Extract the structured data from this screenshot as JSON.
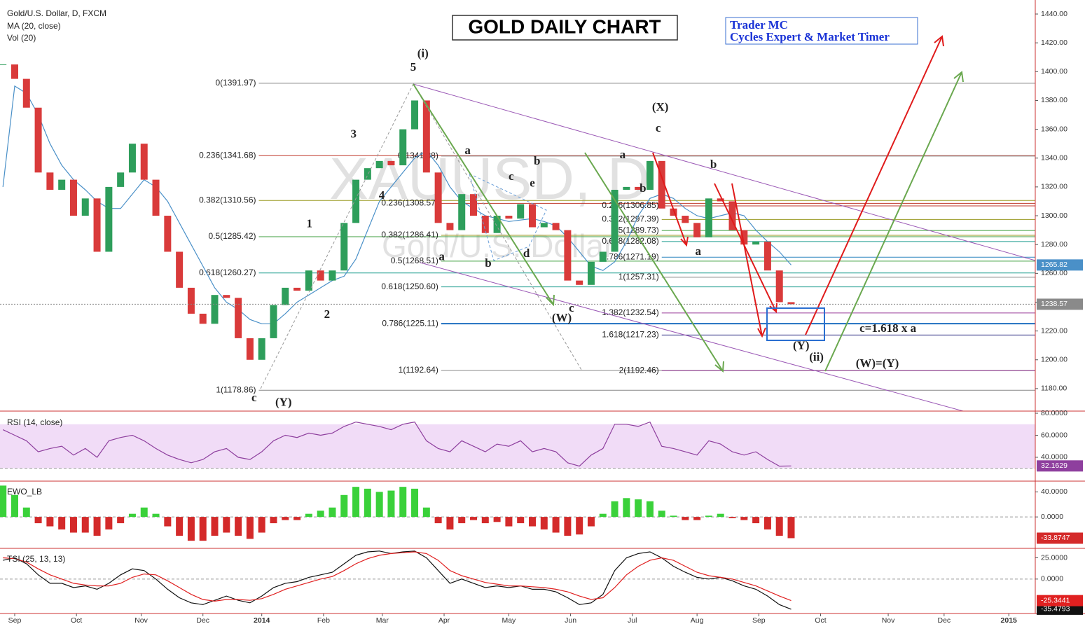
{
  "chart_data": [
    {
      "type": "candlestick",
      "title": "GOLD DAILY CHART",
      "subtitle": [
        "Trader MC",
        "Cycles Expert & Market Timer"
      ],
      "symbol": "Gold/U.S. Dollar, D, FXCM",
      "indicators": [
        "Vol (20)"
      ],
      "watermark": [
        "XAUUSD, D",
        "Gold/U.S. Dollar"
      ],
      "up_color": "#2e9e5b",
      "down_color": "#d93a3a",
      "x": [
        1,
        5,
        9,
        13,
        17,
        21,
        25,
        29,
        33,
        37,
        41,
        45,
        49,
        53,
        57,
        61,
        65,
        69,
        73,
        77,
        81,
        85,
        89,
        93,
        97,
        101,
        105,
        109,
        113,
        117,
        121,
        125,
        129,
        133,
        137,
        141,
        145,
        149,
        153,
        157,
        161,
        165,
        169,
        173,
        177,
        181,
        185,
        189,
        193,
        197,
        201,
        205,
        209,
        213,
        217,
        221,
        225,
        229,
        233,
        237,
        241,
        245,
        249,
        253,
        257,
        261,
        265,
        269
      ],
      "close": [
        1405,
        1395,
        1375,
        1330,
        1318,
        1325,
        1300,
        1312,
        1275,
        1320,
        1330,
        1350,
        1325,
        1300,
        1275,
        1250,
        1232,
        1225,
        1245,
        1243,
        1215,
        1200,
        1215,
        1238,
        1250,
        1248,
        1262,
        1255,
        1262,
        1295,
        1325,
        1333,
        1338,
        1335,
        1360,
        1380,
        1330,
        1295,
        1290,
        1315,
        1300,
        1288,
        1300,
        1298,
        1308,
        1292,
        1295,
        1290,
        1255,
        1252,
        1268,
        1275,
        1318,
        1320,
        1318,
        1338,
        1305,
        1300,
        1295,
        1285,
        1312,
        1310,
        1290,
        1280,
        1282,
        1262,
        1240,
        1238.57
      ],
      "ma": {
        "name": "MA (20, close)",
        "color": "#4a90c8",
        "values": [
          1320,
          1390,
          1385,
          1370,
          1350,
          1335,
          1325,
          1318,
          1310,
          1305,
          1305,
          1315,
          1325,
          1320,
          1310,
          1295,
          1280,
          1265,
          1250,
          1240,
          1235,
          1228,
          1225,
          1225,
          1232,
          1240,
          1245,
          1250,
          1255,
          1258,
          1270,
          1290,
          1310,
          1320,
          1330,
          1340,
          1345,
          1335,
          1320,
          1310,
          1305,
          1300,
          1298,
          1296,
          1297,
          1298,
          1296,
          1293,
          1285,
          1275,
          1265,
          1262,
          1268,
          1282,
          1300,
          1312,
          1315,
          1312,
          1305,
          1300,
          1298,
          1300,
          1302,
          1300,
          1290,
          1282,
          1275,
          1265.82
        ]
      },
      "xlim": [
        0,
        352
      ],
      "xticks": [
        {
          "value": 5,
          "label": "Sep"
        },
        {
          "value": 26,
          "label": "Oct"
        },
        {
          "value": 48,
          "label": "Nov"
        },
        {
          "value": 69,
          "label": "Dec"
        },
        {
          "value": 89,
          "label": "2014"
        },
        {
          "value": 110,
          "label": "Feb"
        },
        {
          "value": 130,
          "label": "Mar"
        },
        {
          "value": 151,
          "label": "Apr"
        },
        {
          "value": 173,
          "label": "May"
        },
        {
          "value": 194,
          "label": "Jun"
        },
        {
          "value": 215,
          "label": "Jul"
        },
        {
          "value": 237,
          "label": "Aug"
        },
        {
          "value": 258,
          "label": "Sep"
        },
        {
          "value": 279,
          "label": "Oct"
        },
        {
          "value": 302,
          "label": "Nov"
        },
        {
          "value": 321,
          "label": "Dec"
        },
        {
          "value": 343,
          "label": "2015"
        }
      ],
      "ylim": [
        1164.4,
        1447.3
      ],
      "yticks": [
        {
          "value": 1180,
          "label": "1180.00"
        },
        {
          "value": 1200,
          "label": "1200.00"
        },
        {
          "value": 1220,
          "label": "1220.00"
        },
        {
          "value": 1240,
          "label": "1240.00"
        },
        {
          "value": 1260,
          "label": "1260.00"
        },
        {
          "value": 1280,
          "label": "1280.00"
        },
        {
          "value": 1300,
          "label": "1300.00"
        },
        {
          "value": 1320,
          "label": "1320.00"
        },
        {
          "value": 1340,
          "label": "1340.00"
        },
        {
          "value": 1360,
          "label": "1360.00"
        },
        {
          "value": 1380,
          "label": "1380.00"
        },
        {
          "value": 1400,
          "label": "1400.00"
        },
        {
          "value": 1420,
          "label": "1420.00"
        },
        {
          "value": 1440,
          "label": "1440.00"
        }
      ],
      "fib_levels": [
        {
          "label": "0(1391.97)",
          "value": 1391.97,
          "color": "#888888",
          "from": 88
        },
        {
          "label": "0.236(1341.68)",
          "value": 1341.68,
          "color": "#c0392b",
          "from": 88
        },
        {
          "label": "0.382(1310.56)",
          "value": 1310.56,
          "color": "#9a9a22",
          "from": 88
        },
        {
          "label": "0.5(1285.42)",
          "value": 1285.42,
          "color": "#3f9f3f",
          "from": 88
        },
        {
          "label": "0.618(1260.27)",
          "value": 1260.27,
          "color": "#1f9d8f",
          "from": 88
        },
        {
          "label": "1(1178.86)",
          "value": 1178.86,
          "color": "#888888",
          "from": 88
        },
        {
          "label": "0(1341.38)",
          "value": 1341.38,
          "color": "#888888",
          "from": 150
        },
        {
          "label": "0.236(1308.57)",
          "value": 1308.57,
          "color": "#c0392b",
          "from": 150
        },
        {
          "label": "0.382(1286.41)",
          "value": 1286.41,
          "color": "#9a9a22",
          "from": 150
        },
        {
          "label": "0.5(1268.51)",
          "value": 1268.51,
          "color": "#3f9f3f",
          "from": 150
        },
        {
          "label": "0.618(1250.60)",
          "value": 1250.6,
          "color": "#1f9d8f",
          "from": 150
        },
        {
          "label": "0.786(1225.11)",
          "value": 1225.11,
          "color": "#1e6fc0",
          "from": 150
        },
        {
          "label": "1(1192.64)",
          "value": 1192.64,
          "color": "#888888",
          "from": 150
        },
        {
          "label": "0.236(1306.85)",
          "value": 1306.85,
          "color": "#c0392b",
          "from": 225
        },
        {
          "label": "0.382(1297.39)",
          "value": 1297.39,
          "color": "#9a9a22",
          "from": 225
        },
        {
          "label": "0.5(1289.73)",
          "value": 1289.73,
          "color": "#3f9f3f",
          "from": 225
        },
        {
          "label": "0.618(1282.08)",
          "value": 1282.08,
          "color": "#1f9d8f",
          "from": 225
        },
        {
          "label": "0.786(1271.19)",
          "value": 1271.19,
          "color": "#2f86c0",
          "from": 225
        },
        {
          "label": "1(1257.31)",
          "value": 1257.31,
          "color": "#888888",
          "from": 225
        },
        {
          "label": "1.382(1232.54)",
          "value": 1232.54,
          "color": "#9b3f9b",
          "from": 225
        },
        {
          "label": "1.618(1217.23)",
          "value": 1217.23,
          "color": "#2a2a80",
          "from": 225
        },
        {
          "label": "2(1192.46)",
          "value": 1192.46,
          "color": "#9b3f9b",
          "from": 225
        }
      ],
      "annotations": [
        {
          "text": "(i)",
          "x": 143.8,
          "y": 1412,
          "color": "#000000"
        },
        {
          "text": "5",
          "x": 140.5,
          "y": 1402.6,
          "color": "#000000"
        },
        {
          "text": "3",
          "x": 120.2,
          "y": 1356,
          "color": "#000000"
        },
        {
          "text": "4",
          "x": 129.8,
          "y": 1313.6,
          "color": "#000000"
        },
        {
          "text": "1",
          "x": 105.2,
          "y": 1294,
          "color": "#000000"
        },
        {
          "text": "2",
          "x": 111.2,
          "y": 1231,
          "color": "#000000"
        },
        {
          "text": "c",
          "x": 86.4,
          "y": 1173,
          "color": "#000000"
        },
        {
          "text": "(Y)",
          "x": 96.4,
          "y": 1170,
          "color": "#000000"
        },
        {
          "text": "a",
          "x": 159,
          "y": 1344.7,
          "color": "#3b7dd8"
        },
        {
          "text": "b",
          "x": 182.6,
          "y": 1337.5,
          "color": "#000000"
        },
        {
          "text": "c",
          "x": 173.8,
          "y": 1326.8,
          "color": "#3b7dd8"
        },
        {
          "text": "e",
          "x": 181,
          "y": 1322,
          "color": "#3b7dd8"
        },
        {
          "text": "d",
          "x": 179,
          "y": 1273.3,
          "color": "#3b7dd8"
        },
        {
          "text": "b",
          "x": 166,
          "y": 1266.5,
          "color": "#3b7dd8"
        },
        {
          "text": "a",
          "x": 150.2,
          "y": 1271,
          "color": "#000000"
        },
        {
          "text": "c",
          "x": 194.3,
          "y": 1235.4,
          "color": "#000000"
        },
        {
          "text": "(W)",
          "x": 191,
          "y": 1228.6,
          "color": "#000000"
        },
        {
          "text": "(X)",
          "x": 224.5,
          "y": 1374.9,
          "color": "#000000"
        },
        {
          "text": "c",
          "x": 223.8,
          "y": 1360.3,
          "color": "#000000"
        },
        {
          "text": "a",
          "x": 211.7,
          "y": 1341.8,
          "color": "#000000"
        },
        {
          "text": "b",
          "x": 218.6,
          "y": 1318.5,
          "color": "#000000"
        },
        {
          "text": "b",
          "x": 242.6,
          "y": 1335,
          "color": "#000000"
        },
        {
          "text": "a",
          "x": 237.4,
          "y": 1274.8,
          "color": "#000000"
        },
        {
          "text": "(Y)",
          "x": 272.4,
          "y": 1209.2,
          "color": "#000000"
        },
        {
          "text": "(ii)",
          "x": 277.6,
          "y": 1201.4,
          "color": "#000000"
        },
        {
          "text": "c=1.618 x a",
          "x": 301.9,
          "y": 1221.3,
          "color": "#e01b1b"
        },
        {
          "text": "(W)=(Y)",
          "x": 298.3,
          "y": 1197,
          "color": "#6aa84f"
        }
      ]
    },
    {
      "type": "line",
      "title": "RSI (14, close)",
      "color": "#8e3f9e",
      "band": [
        30,
        70
      ],
      "band_color": "#f1dcf7",
      "values": [
        65,
        60,
        55,
        45,
        48,
        50,
        42,
        48,
        40,
        55,
        58,
        60,
        55,
        48,
        42,
        38,
        35,
        38,
        45,
        48,
        40,
        38,
        45,
        55,
        60,
        58,
        62,
        60,
        62,
        68,
        72,
        70,
        68,
        65,
        70,
        72,
        55,
        48,
        45,
        55,
        50,
        45,
        52,
        50,
        55,
        45,
        48,
        45,
        35,
        32,
        42,
        48,
        70,
        70,
        68,
        72,
        50,
        48,
        45,
        42,
        55,
        52,
        45,
        42,
        45,
        38,
        32,
        32.1629
      ],
      "ylim": [
        19,
        81.3
      ],
      "yticks": [
        {
          "value": 40,
          "label": "40.0000"
        },
        {
          "value": 60,
          "label": "60.0000"
        },
        {
          "value": 80,
          "label": "80.0000"
        }
      ]
    },
    {
      "type": "histogram",
      "title": "EWO_LB",
      "up_color": "#3ad13a",
      "down_color": "#d42a2a",
      "values": [
        50,
        35,
        15,
        -10,
        -15,
        -20,
        -25,
        -25,
        -30,
        -20,
        -10,
        5,
        15,
        5,
        -15,
        -30,
        -38,
        -38,
        -30,
        -25,
        -30,
        -35,
        -25,
        -10,
        -5,
        -5,
        5,
        10,
        15,
        35,
        48,
        45,
        40,
        42,
        48,
        45,
        15,
        -10,
        -20,
        -10,
        -5,
        -10,
        -8,
        -15,
        -10,
        -15,
        -20,
        -25,
        -30,
        -28,
        -15,
        5,
        25,
        30,
        28,
        25,
        10,
        2,
        -5,
        -5,
        2,
        5,
        -2,
        -5,
        -10,
        -20,
        -30,
        -33.8747
      ],
      "ylim": [
        -49,
        56
      ],
      "yticks": [
        {
          "value": 0,
          "label": "0.0000"
        },
        {
          "value": 40,
          "label": "40.0000"
        }
      ]
    },
    {
      "type": "line",
      "title": "TSI (25, 13, 13)",
      "tsi": {
        "color": "#111111",
        "values": [
          22,
          25,
          18,
          5,
          -5,
          -5,
          -10,
          -8,
          -12,
          -5,
          5,
          12,
          10,
          0,
          -12,
          -22,
          -28,
          -30,
          -25,
          -20,
          -25,
          -28,
          -20,
          -10,
          -5,
          -3,
          2,
          5,
          8,
          18,
          28,
          32,
          33,
          30,
          32,
          33,
          25,
          10,
          -5,
          0,
          -5,
          -10,
          -8,
          -10,
          -8,
          -12,
          -12,
          -15,
          -22,
          -30,
          -28,
          -18,
          10,
          25,
          30,
          32,
          25,
          15,
          8,
          2,
          0,
          2,
          -2,
          -8,
          -12,
          -20,
          -30,
          -35.4793
        ]
      },
      "signal": {
        "color": "#e02020",
        "values": [
          25,
          24,
          20,
          12,
          5,
          0,
          -5,
          -7,
          -8,
          -8,
          -5,
          2,
          6,
          5,
          -2,
          -10,
          -18,
          -24,
          -26,
          -24,
          -24,
          -25,
          -23,
          -18,
          -12,
          -8,
          -4,
          0,
          3,
          10,
          18,
          24,
          28,
          30,
          31,
          32,
          30,
          22,
          10,
          4,
          0,
          -4,
          -6,
          -8,
          -8,
          -9,
          -10,
          -12,
          -15,
          -20,
          -24,
          -22,
          -10,
          5,
          15,
          22,
          25,
          22,
          15,
          8,
          4,
          2,
          0,
          -4,
          -8,
          -14,
          -20,
          -25.3441
        ]
      },
      "ylim": [
        -40.5,
        35.3
      ],
      "yticks": [
        {
          "value": 0,
          "label": "0.0000"
        },
        {
          "value": 25,
          "label": "25.0000"
        }
      ]
    }
  ]
}
